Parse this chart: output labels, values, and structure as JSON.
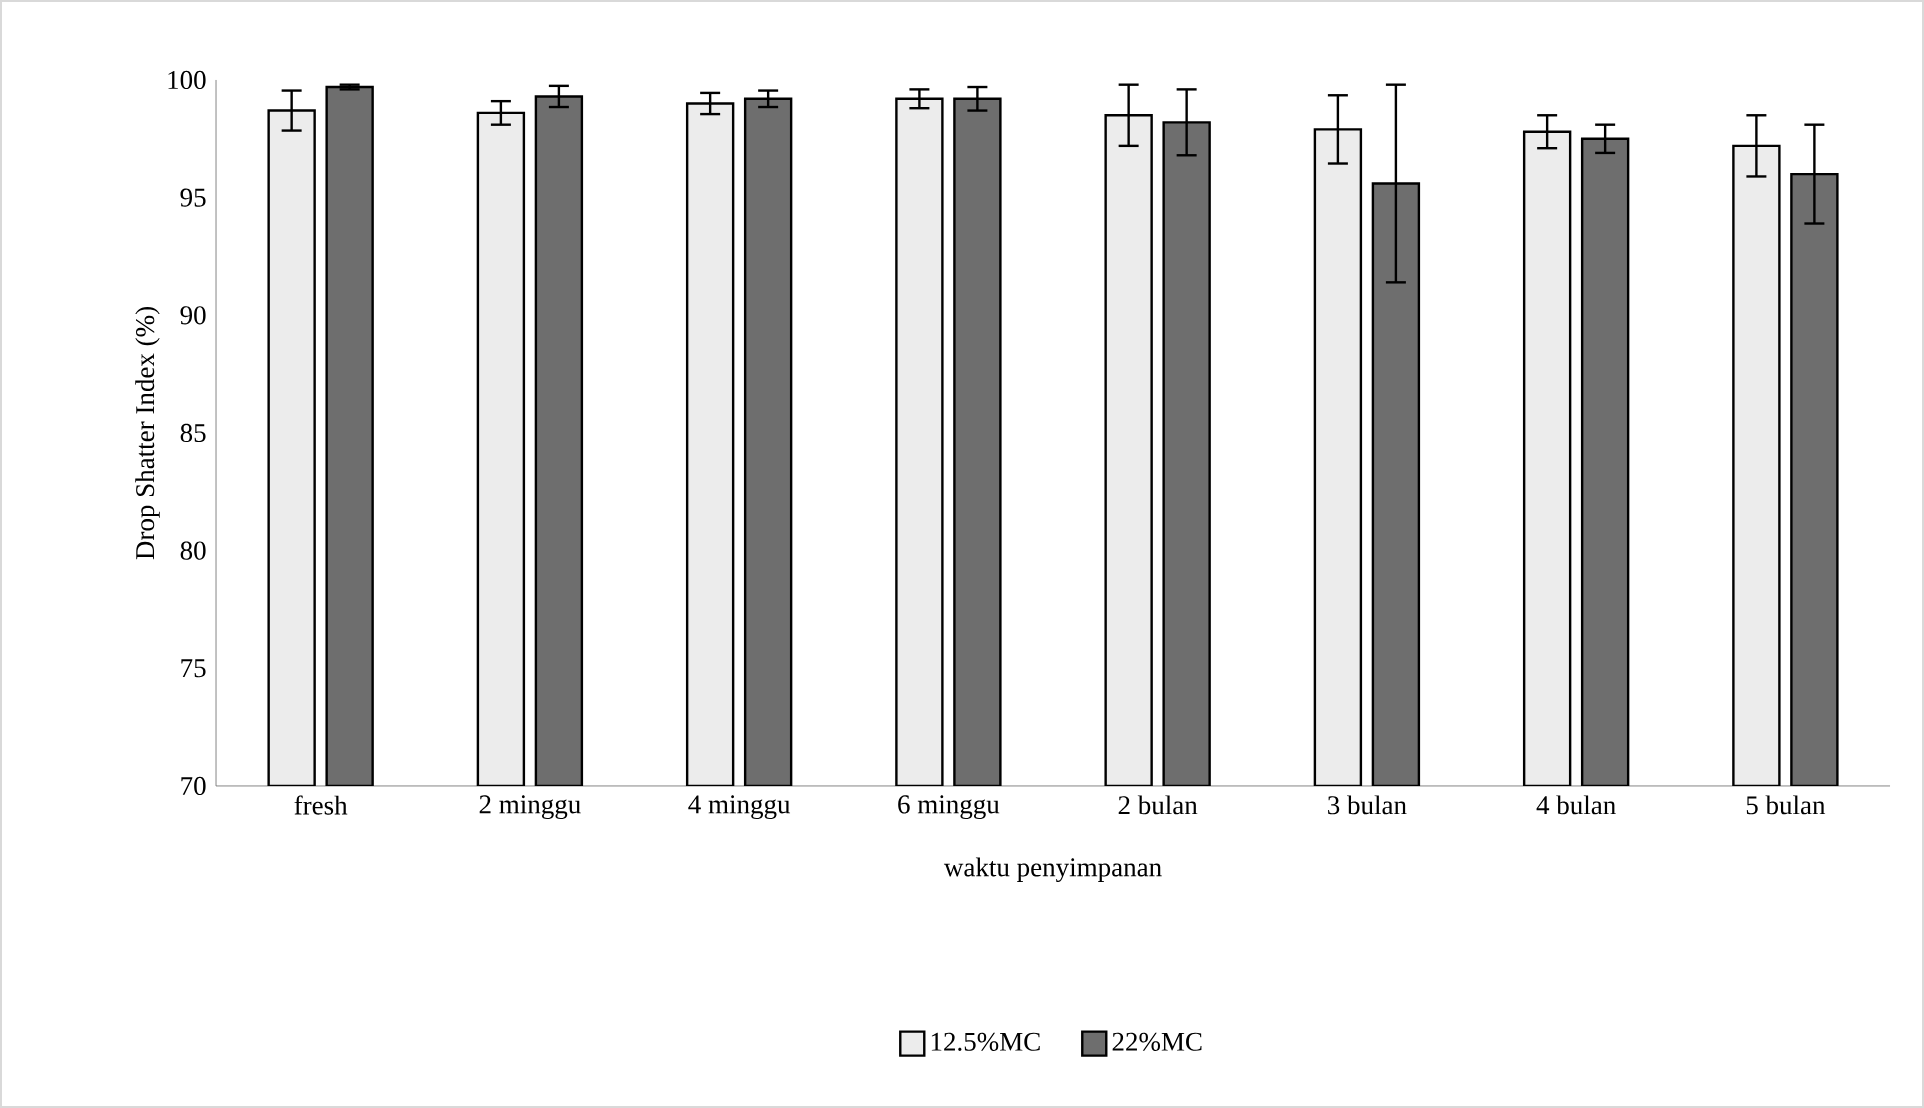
{
  "chart_data": {
    "type": "bar",
    "xlabel": "waktu penyimpanan",
    "ylabel": "Drop Shatter Index (%)",
    "categories": [
      "fresh",
      "2 minggu",
      "4 minggu",
      "6 minggu",
      "2 bulan",
      "3 bulan",
      "4 bulan",
      "5 bulan"
    ],
    "series": [
      {
        "name": "12.5%MC",
        "color": "#ececec",
        "values": [
          98.7,
          98.6,
          99.0,
          99.2,
          98.5,
          97.9,
          97.8,
          97.2
        ],
        "errors": [
          0.85,
          0.5,
          0.45,
          0.4,
          1.3,
          1.45,
          0.7,
          1.3
        ]
      },
      {
        "name": "22%MC",
        "color": "#6e6e6e",
        "values": [
          99.7,
          99.3,
          99.2,
          99.2,
          98.2,
          95.6,
          97.5,
          96.0
        ],
        "errors": [
          0.1,
          0.45,
          0.35,
          0.5,
          1.4,
          4.2,
          0.6,
          2.1
        ]
      }
    ],
    "ylim": [
      70,
      100
    ],
    "yticks": [
      70,
      75,
      80,
      85,
      90,
      95,
      100
    ],
    "grid": false,
    "legend": "bottom"
  }
}
